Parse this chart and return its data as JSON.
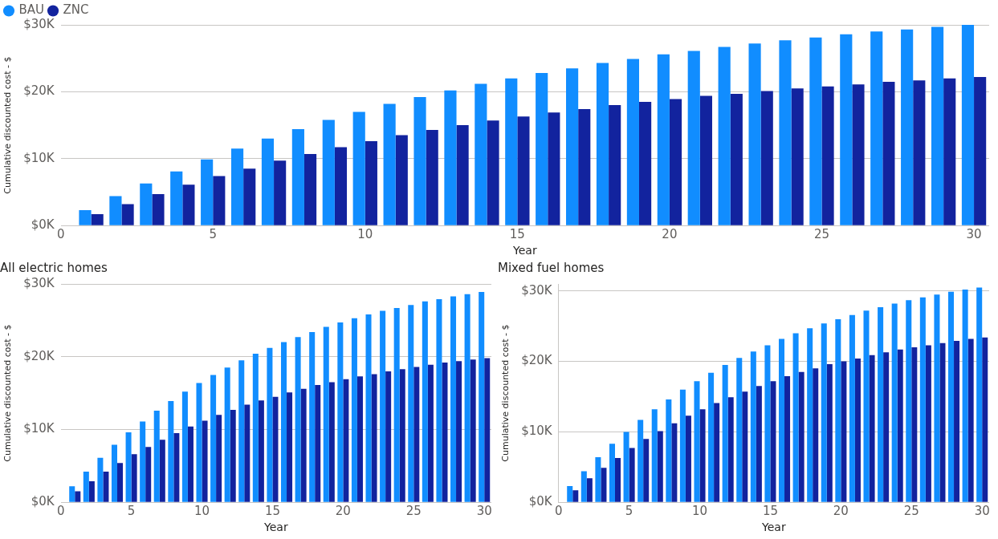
{
  "chart_data": [
    {
      "type": "bar",
      "xlabel": "Year",
      "ylabel": "Cumulative discounted cost - $",
      "legend": "top left",
      "grid": "y",
      "x": [
        1,
        2,
        3,
        4,
        5,
        6,
        7,
        8,
        9,
        10,
        11,
        12,
        13,
        14,
        15,
        16,
        17,
        18,
        19,
        20,
        21,
        22,
        23,
        24,
        25,
        26,
        27,
        28,
        29,
        30
      ],
      "xlim": [
        0,
        30.5
      ],
      "xticks": [
        0,
        5,
        10,
        15,
        20,
        25,
        30
      ],
      "ylim": [
        0,
        30000
      ],
      "yticks": [
        {
          "value": 0,
          "label": "$0K"
        },
        {
          "value": 10000,
          "label": "$10K"
        },
        {
          "value": 20000,
          "label": "$20K"
        },
        {
          "value": 30000,
          "label": "$30K"
        }
      ],
      "series": [
        {
          "name": "BAU",
          "color": "#118dff",
          "values": [
            2300,
            4400,
            6300,
            8100,
            9900,
            11500,
            13000,
            14400,
            15800,
            17000,
            18200,
            19200,
            20200,
            21200,
            22000,
            22800,
            23500,
            24300,
            24900,
            25600,
            26100,
            26700,
            27200,
            27700,
            28100,
            28600,
            29000,
            29300,
            29700,
            30000
          ]
        },
        {
          "name": "ZNC",
          "color": "#12239e",
          "values": [
            1700,
            3200,
            4700,
            6100,
            7400,
            8500,
            9700,
            10700,
            11700,
            12600,
            13500,
            14300,
            15000,
            15700,
            16300,
            16900,
            17400,
            18000,
            18500,
            18900,
            19400,
            19700,
            20100,
            20500,
            20800,
            21100,
            21500,
            21700,
            22000,
            22200
          ]
        }
      ]
    },
    {
      "type": "bar",
      "title": "All electric homes",
      "xlabel": "Year",
      "ylabel": "Cumulative discounted cost - $",
      "grid": "y",
      "x": [
        1,
        2,
        3,
        4,
        5,
        6,
        7,
        8,
        9,
        10,
        11,
        12,
        13,
        14,
        15,
        16,
        17,
        18,
        19,
        20,
        21,
        22,
        23,
        24,
        25,
        26,
        27,
        28,
        29,
        30
      ],
      "xlim": [
        0,
        30.5
      ],
      "xticks": [
        0,
        5,
        10,
        15,
        20,
        25,
        30
      ],
      "ylim": [
        0,
        30000
      ],
      "yticks": [
        {
          "value": 0,
          "label": "$0K"
        },
        {
          "value": 10000,
          "label": "$10K"
        },
        {
          "value": 20000,
          "label": "$20K"
        },
        {
          "value": 30000,
          "label": "$30K"
        }
      ],
      "series": [
        {
          "color": "#118dff",
          "values": [
            2200,
            4200,
            6100,
            7900,
            9600,
            11100,
            12600,
            13900,
            15200,
            16400,
            17500,
            18500,
            19500,
            20400,
            21200,
            22000,
            22700,
            23400,
            24100,
            24700,
            25300,
            25800,
            26300,
            26700,
            27100,
            27600,
            27900,
            28300,
            28600,
            28900
          ]
        },
        {
          "color": "#12239e",
          "values": [
            1500,
            2900,
            4200,
            5400,
            6600,
            7600,
            8600,
            9500,
            10400,
            11200,
            12000,
            12700,
            13400,
            14000,
            14500,
            15100,
            15600,
            16100,
            16500,
            16900,
            17300,
            17600,
            18000,
            18300,
            18600,
            18900,
            19200,
            19400,
            19600,
            19800
          ]
        }
      ]
    },
    {
      "type": "bar",
      "title": "Mixed fuel homes",
      "xlabel": "Year",
      "ylabel": "Cumulative discounted cost - $",
      "grid": "y",
      "x": [
        1,
        2,
        3,
        4,
        5,
        6,
        7,
        8,
        9,
        10,
        11,
        12,
        13,
        14,
        15,
        16,
        17,
        18,
        19,
        20,
        21,
        22,
        23,
        24,
        25,
        26,
        27,
        28,
        29,
        30
      ],
      "xlim": [
        0,
        30.5
      ],
      "xticks": [
        0,
        5,
        10,
        15,
        20,
        25,
        30
      ],
      "ylim": [
        0,
        31000
      ],
      "yticks": [
        {
          "value": 0,
          "label": "$0K"
        },
        {
          "value": 10000,
          "label": "$10K"
        },
        {
          "value": 20000,
          "label": "$20K"
        },
        {
          "value": 30000,
          "label": "$30K"
        }
      ],
      "series": [
        {
          "color": "#118dff",
          "values": [
            2300,
            4400,
            6400,
            8300,
            10000,
            11700,
            13200,
            14600,
            16000,
            17200,
            18400,
            19500,
            20500,
            21400,
            22300,
            23200,
            24000,
            24700,
            25400,
            26000,
            26600,
            27200,
            27700,
            28200,
            28700,
            29100,
            29500,
            29900,
            30200,
            30500
          ]
        },
        {
          "color": "#12239e",
          "values": [
            1700,
            3400,
            4900,
            6300,
            7700,
            9000,
            10100,
            11200,
            12300,
            13200,
            14100,
            14900,
            15700,
            16500,
            17200,
            17900,
            18500,
            19000,
            19600,
            20000,
            20400,
            20900,
            21300,
            21700,
            22000,
            22300,
            22600,
            22900,
            23200,
            23400
          ]
        }
      ]
    }
  ]
}
